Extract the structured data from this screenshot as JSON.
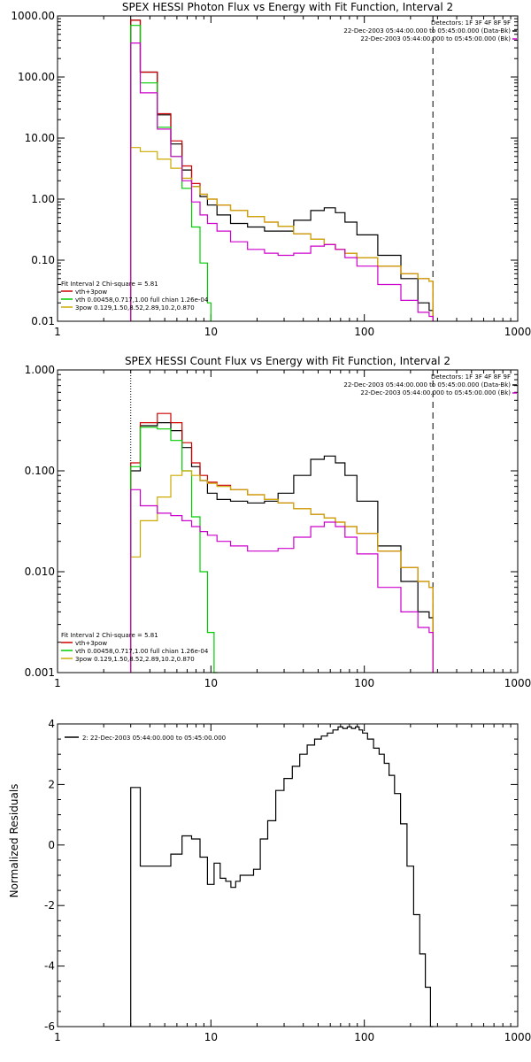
{
  "chart_data": [
    {
      "type": "line",
      "title": "SPEX HESSI Photon Flux vs Energy with Fit Function, Interval 2",
      "xscale": "log",
      "yscale": "log",
      "xlim": [
        1,
        1000
      ],
      "ylim": [
        0.01,
        1000
      ],
      "xticks": [
        1,
        10,
        100,
        1000
      ],
      "xticklabels": [
        "1",
        "10",
        "100",
        "1000"
      ],
      "yticks": [
        0.01,
        0.1,
        1,
        10,
        100,
        1000
      ],
      "yticklabels": [
        "0.01",
        "0.10",
        "1.00",
        "10.00",
        "100.00",
        "1000.00"
      ],
      "fit_range": [
        3,
        280
      ],
      "legend_top": [
        "Detectors: 1F 3F 4F 8F 9F",
        "22-Dec-2003 05:44:00.000 to 05:45:00.000 (Data-Bk)",
        "22-Dec-2003 05:44:00.000 to 05:45:00.000 (Bk)"
      ],
      "legend_bottom": [
        "Fit Interval 2   Chi-square = 5.81",
        "vth+3pow",
        "vth 0.00458,0.717,1.00  full chian 1.26e-04",
        "3pow 0.129,1.50,8.52,2.89,10.2,0.870"
      ],
      "series": [
        {
          "color": "#000000",
          "x": [
            3,
            4,
            5,
            6,
            7,
            8,
            9,
            10,
            12,
            15,
            20,
            25,
            30,
            40,
            50,
            60,
            70,
            80,
            100,
            150,
            200,
            250,
            280
          ],
          "y": [
            850,
            120,
            24,
            8,
            3,
            1.6,
            1.1,
            0.8,
            0.55,
            0.4,
            0.35,
            0.3,
            0.3,
            0.45,
            0.65,
            0.72,
            0.6,
            0.42,
            0.26,
            0.12,
            0.05,
            0.02,
            0.015
          ]
        },
        {
          "color": "#cc0000",
          "x": [
            3,
            4,
            5,
            6,
            7,
            8,
            9,
            10,
            12,
            15,
            20,
            25,
            30,
            40,
            50,
            60,
            70,
            80,
            100,
            150,
            200,
            250,
            280
          ],
          "y": [
            850,
            120,
            25,
            9,
            3.5,
            1.8,
            1.2,
            1.0,
            0.8,
            0.65,
            0.52,
            0.42,
            0.36,
            0.27,
            0.22,
            0.18,
            0.15,
            0.13,
            0.11,
            0.08,
            0.06,
            0.05,
            0.045
          ]
        },
        {
          "color": "#00cc00",
          "x": [
            3,
            4,
            5,
            6,
            7,
            8,
            9,
            10
          ],
          "y": [
            700,
            80,
            15,
            5,
            1.5,
            0.35,
            0.09,
            0.02
          ]
        },
        {
          "color": "#ccaa00",
          "x": [
            3,
            4,
            5,
            6,
            7,
            8,
            9,
            10,
            12,
            15,
            20,
            25,
            30,
            40,
            50,
            60,
            70,
            80,
            100,
            150,
            200,
            250,
            280
          ],
          "y": [
            7,
            6,
            4.5,
            3.2,
            2.2,
            1.6,
            1.2,
            1.0,
            0.8,
            0.65,
            0.52,
            0.42,
            0.36,
            0.27,
            0.22,
            0.18,
            0.15,
            0.13,
            0.11,
            0.08,
            0.06,
            0.05,
            0.045
          ]
        },
        {
          "color": "#cc00cc",
          "x": [
            3,
            4,
            5,
            6,
            7,
            8,
            9,
            10,
            12,
            15,
            20,
            25,
            30,
            40,
            50,
            60,
            70,
            80,
            100,
            150,
            200,
            250,
            280
          ],
          "y": [
            360,
            55,
            14,
            5,
            2,
            0.9,
            0.55,
            0.4,
            0.3,
            0.2,
            0.15,
            0.13,
            0.12,
            0.13,
            0.17,
            0.18,
            0.15,
            0.11,
            0.08,
            0.04,
            0.022,
            0.014,
            0.012
          ]
        }
      ]
    },
    {
      "type": "line",
      "title": "SPEX HESSI Count Flux vs Energy with Fit Function, Interval 2",
      "xscale": "log",
      "yscale": "log",
      "xlim": [
        1,
        1000
      ],
      "ylim": [
        0.001,
        1
      ],
      "xticks": [
        1,
        10,
        100,
        1000
      ],
      "xticklabels": [
        "1",
        "10",
        "100",
        "1000"
      ],
      "yticks": [
        0.001,
        0.01,
        0.1,
        1
      ],
      "yticklabels": [
        "0.001",
        "0.010",
        "0.100",
        "1.000"
      ],
      "fit_range": [
        3,
        280
      ],
      "legend_top": [
        "Detectors: 1F 3F 4F 8F 9F",
        "22-Dec-2003 05:44:00.000 to 05:45:00.000 (Data-Bk)",
        "22-Dec-2003 05:44:00.000 to 05:45:00.000 (Bk)"
      ],
      "legend_bottom": [
        "Fit Interval 2   Chi-square = 5.81",
        "vth+3pow",
        "vth 0.00458,0.717,1.00  full chian 1.26e-04",
        "3pow 0.129,1.50,8.52,2.89,10.2,0.870"
      ],
      "series": [
        {
          "color": "#000000",
          "x": [
            3,
            4,
            5,
            6,
            7,
            8,
            9,
            10,
            12,
            15,
            20,
            25,
            30,
            40,
            50,
            60,
            70,
            80,
            100,
            150,
            200,
            250,
            280
          ],
          "y": [
            0.1,
            0.28,
            0.3,
            0.25,
            0.17,
            0.11,
            0.08,
            0.06,
            0.052,
            0.05,
            0.048,
            0.05,
            0.06,
            0.09,
            0.13,
            0.14,
            0.12,
            0.09,
            0.05,
            0.018,
            0.008,
            0.004,
            0.0035
          ]
        },
        {
          "color": "#cc0000",
          "x": [
            3,
            4,
            5,
            6,
            7,
            8,
            9,
            10,
            12,
            15,
            20,
            25,
            30,
            40,
            50,
            60,
            70,
            80,
            100,
            150,
            200,
            250,
            280
          ],
          "y": [
            0.12,
            0.3,
            0.37,
            0.3,
            0.19,
            0.12,
            0.09,
            0.077,
            0.072,
            0.065,
            0.058,
            0.052,
            0.048,
            0.042,
            0.037,
            0.034,
            0.031,
            0.028,
            0.024,
            0.016,
            0.011,
            0.008,
            0.007
          ]
        },
        {
          "color": "#00cc00",
          "x": [
            3,
            4,
            5,
            6,
            7,
            8,
            9,
            10,
            11
          ],
          "y": [
            0.11,
            0.27,
            0.26,
            0.2,
            0.1,
            0.035,
            0.01,
            0.0025,
            0.001
          ]
        },
        {
          "color": "#ccaa00",
          "x": [
            3,
            4,
            5,
            6,
            7,
            8,
            9,
            10,
            12,
            15,
            20,
            25,
            30,
            40,
            50,
            60,
            70,
            80,
            100,
            150,
            200,
            250,
            280
          ],
          "y": [
            0.014,
            0.032,
            0.055,
            0.09,
            0.1,
            0.09,
            0.08,
            0.075,
            0.07,
            0.065,
            0.058,
            0.052,
            0.048,
            0.042,
            0.037,
            0.034,
            0.031,
            0.028,
            0.024,
            0.016,
            0.011,
            0.008,
            0.007
          ]
        },
        {
          "color": "#cc00cc",
          "x": [
            3,
            4,
            5,
            6,
            7,
            8,
            9,
            10,
            12,
            15,
            20,
            25,
            30,
            40,
            50,
            60,
            70,
            80,
            100,
            150,
            200,
            250,
            280
          ],
          "y": [
            0.065,
            0.045,
            0.038,
            0.036,
            0.032,
            0.028,
            0.025,
            0.023,
            0.02,
            0.018,
            0.016,
            0.016,
            0.017,
            0.022,
            0.028,
            0.031,
            0.028,
            0.022,
            0.015,
            0.007,
            0.004,
            0.0028,
            0.0025
          ]
        }
      ]
    },
    {
      "type": "line",
      "title": "",
      "xscale": "log",
      "yscale": "linear",
      "xlim": [
        1,
        1000
      ],
      "ylim": [
        -6,
        4
      ],
      "xticks": [
        1,
        10,
        100,
        1000
      ],
      "xticklabels": [
        "1",
        "10",
        "100",
        "1000"
      ],
      "yticks": [
        -6,
        -4,
        -2,
        0,
        2,
        4
      ],
      "yticklabels": [
        "-6",
        "-4",
        "-2",
        "0",
        "2",
        "4"
      ],
      "ylabel": "Normalized Residuals",
      "legend_top": [
        "2: 22-Dec-2003 05:44:00.000 to 05:45:00.000"
      ],
      "series": [
        {
          "color": "#000000",
          "x": [
            3,
            4,
            5,
            6,
            7,
            8,
            9,
            10,
            11,
            12,
            13,
            14,
            15,
            16,
            18,
            20,
            22,
            25,
            28,
            32,
            36,
            40,
            45,
            50,
            55,
            60,
            65,
            70,
            75,
            80,
            85,
            90,
            95,
            100,
            110,
            120,
            130,
            140,
            150,
            165,
            180,
            200,
            220,
            240,
            260,
            280
          ],
          "y": [
            1.9,
            -0.7,
            -0.7,
            -0.3,
            0.3,
            0.2,
            -0.4,
            -1.3,
            -0.6,
            -1.1,
            -1.2,
            -1.4,
            -1.2,
            -1.0,
            -1.0,
            -0.8,
            0.2,
            0.8,
            1.8,
            2.2,
            2.6,
            3.0,
            3.3,
            3.5,
            3.6,
            3.7,
            3.8,
            3.9,
            3.85,
            3.9,
            3.85,
            3.9,
            3.8,
            3.7,
            3.5,
            3.2,
            3.0,
            2.7,
            2.3,
            1.7,
            0.7,
            -0.7,
            -2.3,
            -3.6,
            -4.7,
            -6.0
          ]
        }
      ]
    }
  ]
}
